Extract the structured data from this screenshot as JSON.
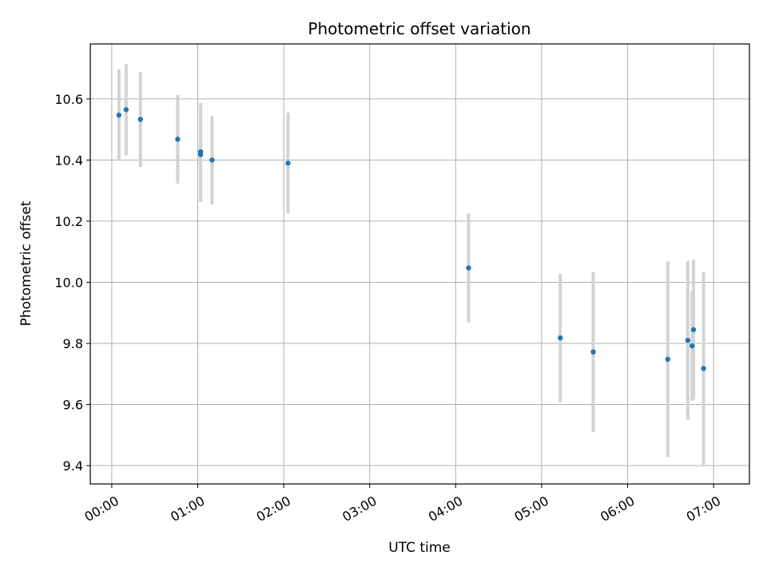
{
  "chart_data": {
    "type": "scatter",
    "title": "Photometric offset variation",
    "xlabel": "UTC time",
    "ylabel": "Photometric offset",
    "x_unit": "UTC hh:mm",
    "xlim": [
      "23:45",
      "07:25"
    ],
    "ylim": [
      9.34,
      10.78
    ],
    "x_ticks": [
      "00:00",
      "01:00",
      "02:00",
      "03:00",
      "04:00",
      "05:00",
      "06:00",
      "07:00"
    ],
    "y_ticks": [
      "9.4",
      "9.6",
      "9.8",
      "10.0",
      "10.2",
      "10.4",
      "10.6"
    ],
    "grid": true,
    "point_color": "#1f77b4",
    "errorbar_color": "#d3d3d3",
    "points": [
      {
        "x": "00:05",
        "y": 10.547,
        "err": 0.15
      },
      {
        "x": "00:10",
        "y": 10.565,
        "err": 0.15
      },
      {
        "x": "00:20",
        "y": 10.533,
        "err": 0.155
      },
      {
        "x": "00:46",
        "y": 10.468,
        "err": 0.145
      },
      {
        "x": "01:02",
        "y": 10.418,
        "err": 0.155
      },
      {
        "x": "01:02",
        "y": 10.427,
        "err": 0.16
      },
      {
        "x": "01:10",
        "y": 10.4,
        "err": 0.145
      },
      {
        "x": "02:03",
        "y": 10.39,
        "err": 0.165
      },
      {
        "x": "04:09",
        "y": 10.047,
        "err": 0.178
      },
      {
        "x": "05:13",
        "y": 9.818,
        "err": 0.21
      },
      {
        "x": "05:36",
        "y": 9.772,
        "err": 0.262
      },
      {
        "x": "06:28",
        "y": 9.748,
        "err": 0.32
      },
      {
        "x": "06:42",
        "y": 9.81,
        "err": 0.26
      },
      {
        "x": "06:45",
        "y": 9.792,
        "err": 0.18
      },
      {
        "x": "06:46",
        "y": 9.845,
        "err": 0.228
      },
      {
        "x": "06:53",
        "y": 9.718,
        "err": 0.315
      }
    ]
  }
}
